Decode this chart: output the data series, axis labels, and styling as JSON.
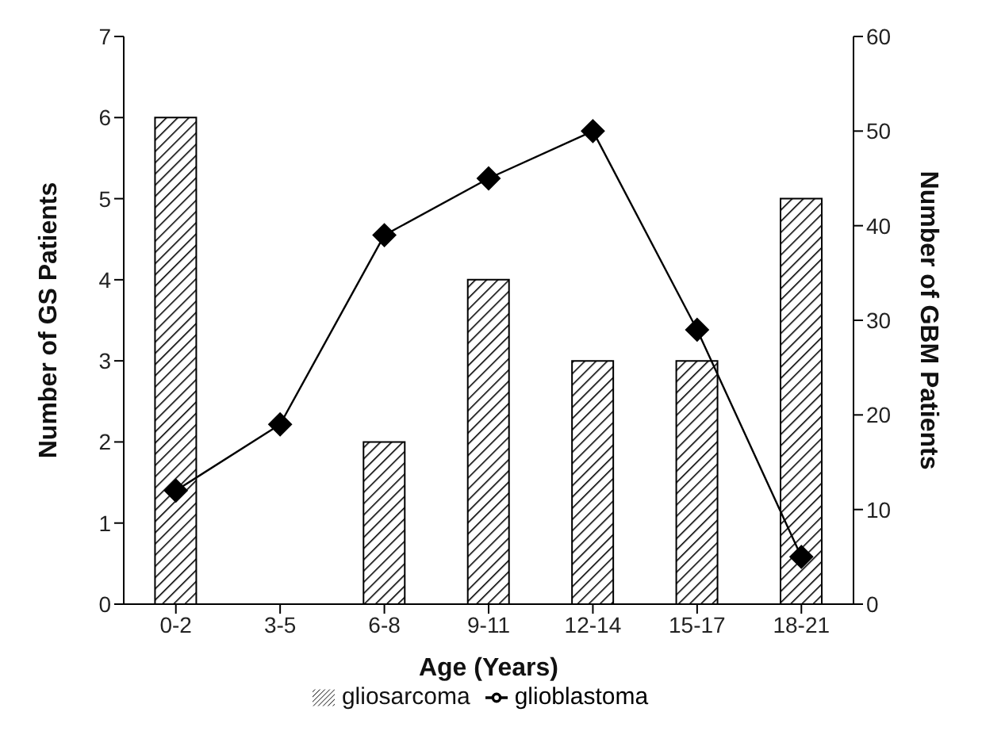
{
  "chart_data": {
    "type": "bar",
    "xlabel": "Age (Years)",
    "ylabel": "Number of GS Patients",
    "y2label": "Number of GBM Patients",
    "categories": [
      "0-2",
      "3-5",
      "6-8",
      "9-11",
      "12-14",
      "15-17",
      "18-21"
    ],
    "series": [
      {
        "name": "gliosarcoma",
        "color": "#000000",
        "values": [
          6,
          0,
          2,
          4,
          3,
          3,
          5
        ]
      },
      {
        "name": "glioblastoma",
        "type": "line",
        "axis": "y2",
        "color": "#000000",
        "marker": "diamond",
        "values": [
          12,
          19,
          39,
          45,
          50,
          29,
          5
        ]
      }
    ],
    "ylim": [
      0,
      7
    ],
    "yticks": [
      0,
      1,
      2,
      3,
      4,
      5,
      6,
      7
    ],
    "y2lim": [
      0,
      60
    ],
    "y2ticks": [
      0,
      10,
      20,
      30,
      40,
      50,
      60
    ],
    "grid": false,
    "legend": "bottom"
  }
}
